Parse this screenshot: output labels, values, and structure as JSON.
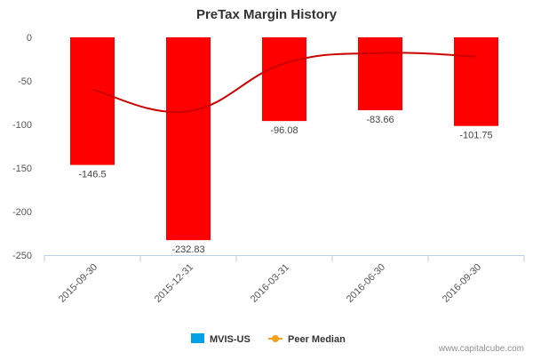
{
  "chart_data": {
    "type": "bar",
    "title": "PreTax Margin History",
    "categories": [
      "2015-09-30",
      "2015-12-31",
      "2016-03-31",
      "2016-06-30",
      "2016-09-30"
    ],
    "series": [
      {
        "name": "MVIS-US",
        "type": "bar",
        "values": [
          -146.5,
          -232.83,
          -96.08,
          -83.66,
          -101.75
        ],
        "data_labels": [
          "-146.5",
          "-232.83",
          "-96.08",
          "-83.66",
          "-101.75"
        ]
      },
      {
        "name": "Peer Median",
        "type": "line",
        "values": [
          -60,
          -85,
          -30,
          -18,
          -22
        ]
      }
    ],
    "ylim": [
      -250,
      0
    ],
    "yticks": [
      0,
      -50,
      -100,
      -150,
      -200,
      -250
    ],
    "ytick_labels": [
      "0",
      "-50",
      "-100",
      "-150",
      "-200",
      "-250"
    ],
    "grid": false,
    "legend_position": "bottom"
  },
  "colors": {
    "bar_fill": "#ff0000",
    "peer_line": "#cc0000",
    "legend_mvis": "#00a1e4",
    "legend_peer": "#f7a11a",
    "axis": "#c0d0e0"
  },
  "credit": "www.capitalcube.com"
}
